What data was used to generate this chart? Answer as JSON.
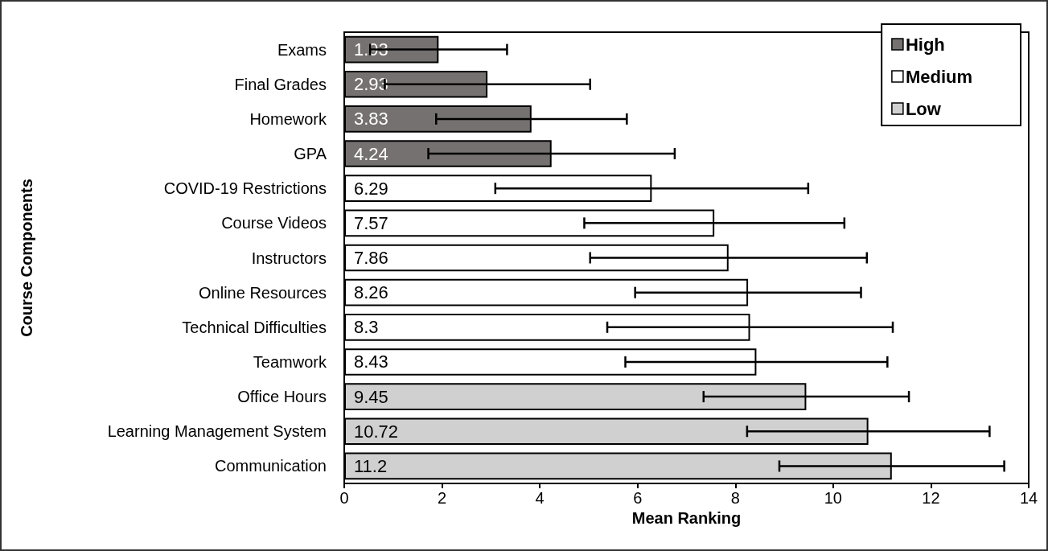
{
  "chart_data": {
    "type": "bar",
    "orientation": "horizontal",
    "xlabel": "Mean Ranking",
    "ylabel": "Course Components",
    "categories": [
      "Exams",
      "Final Grades",
      "Homework",
      "GPA",
      "COVID-19 Restrictions",
      "Course Videos",
      "Instructors",
      "Online Resources",
      "Technical Difficulties",
      "Teamwork",
      "Office Hours",
      "Learning Management System",
      "Communication"
    ],
    "series": [
      {
        "name": "High",
        "color": "#767171",
        "values": [
          1.93,
          2.93,
          3.83,
          4.24,
          null,
          null,
          null,
          null,
          null,
          null,
          null,
          null,
          null
        ],
        "errors": [
          1.4,
          2.1,
          1.95,
          2.52,
          null,
          null,
          null,
          null,
          null,
          null,
          null,
          null,
          null
        ]
      },
      {
        "name": "Medium",
        "color": "#ffffff",
        "values": [
          null,
          null,
          null,
          null,
          6.29,
          7.57,
          7.86,
          8.26,
          8.3,
          8.43,
          null,
          null,
          null
        ],
        "errors": [
          null,
          null,
          null,
          null,
          3.2,
          2.66,
          2.83,
          2.31,
          2.92,
          2.68,
          null,
          null,
          null
        ]
      },
      {
        "name": "Low",
        "color": "#d0d0d0",
        "values": [
          null,
          null,
          null,
          null,
          null,
          null,
          null,
          null,
          null,
          null,
          9.45,
          10.72,
          11.2
        ],
        "errors": [
          null,
          null,
          null,
          null,
          null,
          null,
          null,
          null,
          null,
          null,
          2.1,
          2.48,
          2.3
        ]
      }
    ],
    "xlim": [
      0,
      14
    ],
    "xticks": [
      0,
      2,
      4,
      6,
      8,
      10,
      12,
      14
    ],
    "data_labels": true,
    "grid": false,
    "legend": "top right"
  }
}
